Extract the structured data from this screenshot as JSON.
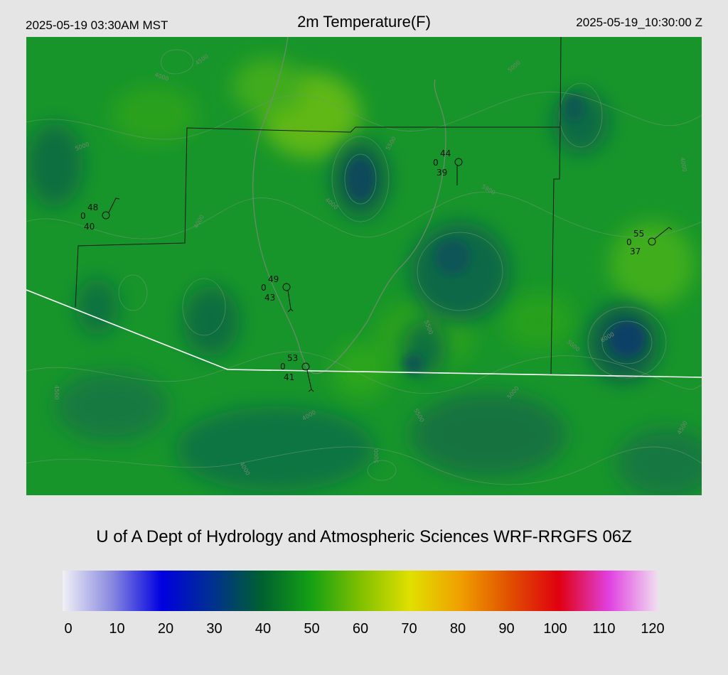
{
  "header": {
    "local_time": "2025-05-19 03:30AM MST",
    "title": "2m Temperature(F)",
    "utc_time": "2025-05-19_10:30:00 Z"
  },
  "credit": "U of A Dept of Hydrology and Atmospheric Sciences WRF-RRGFS 06Z",
  "colorbar": {
    "ticks": [
      "0",
      "10",
      "20",
      "30",
      "40",
      "50",
      "60",
      "70",
      "80",
      "90",
      "100",
      "110",
      "120"
    ],
    "min": 0,
    "max": 120,
    "colors": [
      "#f0f0f6",
      "#8888e0",
      "#0000e0",
      "#003090",
      "#006030",
      "#14a014",
      "#80c000",
      "#e0e000",
      "#f0a000",
      "#e05000",
      "#e00010",
      "#e040e0",
      "#f0e0f0"
    ]
  },
  "stations": [
    {
      "id": "stn-1",
      "temp": "48",
      "zero": "0",
      "dew": "40"
    },
    {
      "id": "stn-2",
      "temp": "44",
      "zero": "0",
      "dew": "39"
    },
    {
      "id": "stn-3",
      "temp": "55",
      "zero": "0",
      "dew": "37"
    },
    {
      "id": "stn-4",
      "temp": "49",
      "zero": "0",
      "dew": "43"
    },
    {
      "id": "stn-5",
      "temp": "53",
      "zero": "0",
      "dew": "41"
    }
  ],
  "contour_labels": [
    "4000",
    "4500",
    "5000",
    "5500",
    "6000",
    "5900"
  ]
}
